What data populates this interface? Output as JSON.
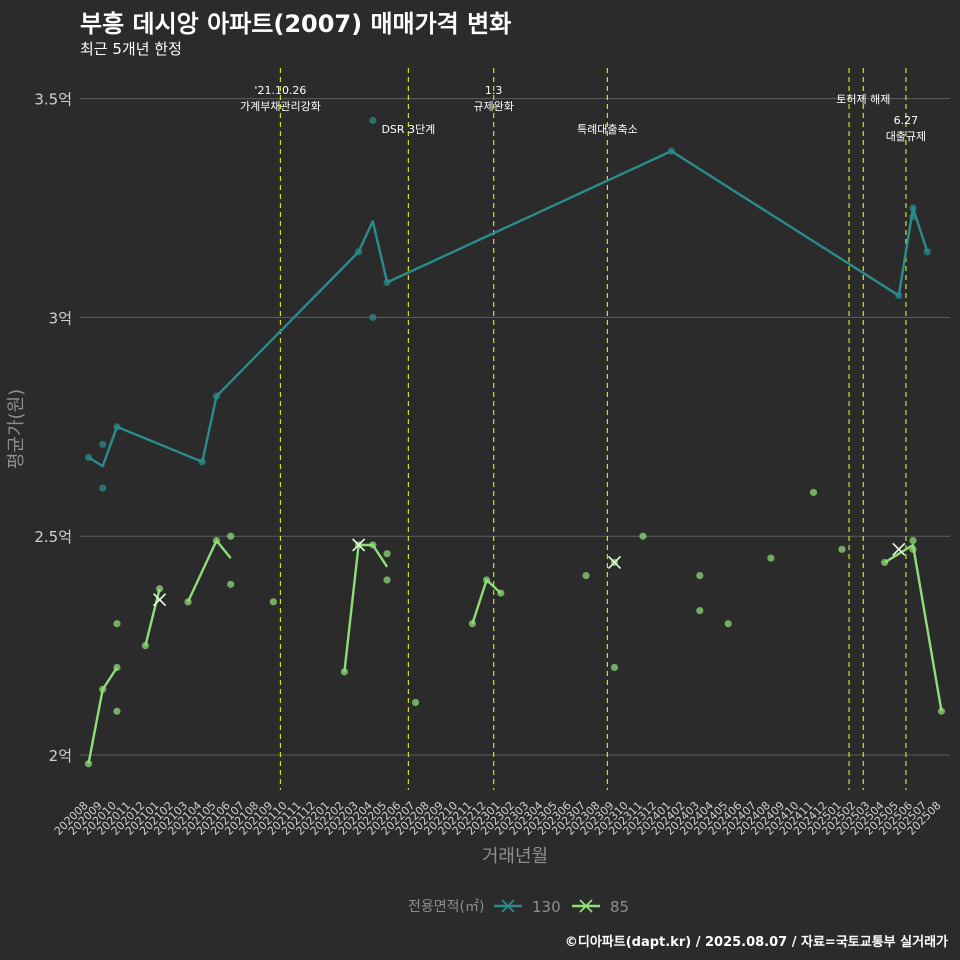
{
  "header": {
    "title": "부흥 데시앙 아파트(2007) 매매가격 변화",
    "subtitle": "최근 5개년 한정"
  },
  "caption": "©디아파트(dapt.kr) / 2025.08.07 / 자료=국토교통부 실거래가",
  "colors": {
    "background": "#2b2b2b",
    "grid": "#5e5e5e",
    "event_line": "#d4e01a",
    "series_130": "#2a8c8c",
    "series_85": "#8fde78",
    "axis_text": "#8e8e8e",
    "tick_text": "#d0d0d0"
  },
  "chart_data": {
    "type": "line",
    "title": "부흥 데시앙 아파트(2007) 매매가격 변화",
    "subtitle": "최근 5개년 한정",
    "xlabel": "거래년월",
    "ylabel": "평균가(원)",
    "ylim": [
      1.92,
      3.57
    ],
    "y_ticks": [
      {
        "value": 2.0,
        "label": "2억"
      },
      {
        "value": 2.5,
        "label": "2.5억"
      },
      {
        "value": 3.0,
        "label": "3억"
      },
      {
        "value": 3.5,
        "label": "3.5억"
      }
    ],
    "x_categories": [
      "202008",
      "202009",
      "202010",
      "202011",
      "202012",
      "202101",
      "202102",
      "202103",
      "202104",
      "202105",
      "202106",
      "202107",
      "202108",
      "202109",
      "202110",
      "202111",
      "202112",
      "202201",
      "202202",
      "202203",
      "202204",
      "202205",
      "202206",
      "202207",
      "202208",
      "202209",
      "202210",
      "202211",
      "202212",
      "202301",
      "202302",
      "202303",
      "202304",
      "202305",
      "202306",
      "202307",
      "202308",
      "202309",
      "202310",
      "202311",
      "202312",
      "202401",
      "202402",
      "202403",
      "202404",
      "202405",
      "202406",
      "202407",
      "202408",
      "202409",
      "202410",
      "202411",
      "202412",
      "202501",
      "202502",
      "202503",
      "202504",
      "202505",
      "202506",
      "202507",
      "202508"
    ],
    "grid": true,
    "legend": {
      "title": "전용면적(㎡)",
      "position": "bottom",
      "items": [
        {
          "name": "130",
          "color": "#2a8c8c"
        },
        {
          "name": "85",
          "color": "#8fde78"
        }
      ]
    },
    "events": [
      {
        "x": 14.5,
        "lines": [
          "'21.10.26",
          "가계부채관리강화"
        ],
        "level": 1
      },
      {
        "x": 23.5,
        "lines": [
          "DSR 3단계"
        ],
        "level": 2
      },
      {
        "x": 29.5,
        "lines": [
          "1.3",
          "규제완화"
        ],
        "level": 1
      },
      {
        "x": 37.5,
        "lines": [
          "특례대출축소"
        ],
        "level": 2
      },
      {
        "x": 54.5,
        "lines": [],
        "level": 0
      },
      {
        "x": 55.5,
        "lines": [
          "토허제 해제"
        ],
        "level": 0.5
      },
      {
        "x": 58.5,
        "lines": [
          "6.27",
          "대출규제"
        ],
        "level": 2.5
      }
    ],
    "series": [
      {
        "name": "130",
        "color": "#2a8c8c",
        "line": [
          [
            1,
            2.68
          ],
          [
            2,
            2.66
          ],
          [
            3,
            2.75
          ],
          [
            9,
            2.67
          ],
          [
            10,
            2.82
          ],
          [
            20,
            3.15
          ],
          [
            21,
            3.22
          ],
          [
            22,
            3.08
          ],
          [
            42,
            3.38
          ],
          [
            58,
            3.05
          ],
          [
            59,
            3.25
          ],
          [
            60,
            3.15
          ]
        ],
        "points": [
          [
            1,
            2.68
          ],
          [
            2,
            2.61
          ],
          [
            2,
            2.71
          ],
          [
            3,
            2.75
          ],
          [
            9,
            2.67
          ],
          [
            10,
            2.82
          ],
          [
            20,
            3.15
          ],
          [
            21,
            3.45
          ],
          [
            21,
            3.0
          ],
          [
            22,
            3.08
          ],
          [
            42,
            3.38
          ],
          [
            58,
            3.05
          ],
          [
            59,
            3.25
          ],
          [
            59,
            3.23
          ],
          [
            60,
            3.15
          ]
        ],
        "crosses": []
      },
      {
        "name": "85",
        "color": "#8fde78",
        "line_segments": [
          [
            [
              1,
              1.98
            ],
            [
              2,
              2.15
            ],
            [
              3,
              2.2
            ]
          ],
          [
            [
              5,
              2.25
            ],
            [
              6,
              2.38
            ]
          ],
          [
            [
              8,
              2.35
            ],
            [
              10,
              2.49
            ],
            [
              11,
              2.45
            ]
          ],
          [
            [
              19,
              2.19
            ],
            [
              20,
              2.48
            ],
            [
              21,
              2.48
            ],
            [
              22,
              2.43
            ]
          ],
          [
            [
              28,
              2.3
            ],
            [
              29,
              2.4
            ],
            [
              30,
              2.37
            ]
          ],
          [
            [
              57,
              2.44
            ],
            [
              59,
              2.48
            ],
            [
              61,
              2.1
            ]
          ]
        ],
        "points": [
          [
            1,
            1.98
          ],
          [
            2,
            2.15
          ],
          [
            3,
            2.2
          ],
          [
            3,
            2.1
          ],
          [
            3,
            2.3
          ],
          [
            5,
            2.25
          ],
          [
            6,
            2.38
          ],
          [
            8,
            2.35
          ],
          [
            10,
            2.49
          ],
          [
            11,
            2.5
          ],
          [
            11,
            2.39
          ],
          [
            14,
            2.35
          ],
          [
            19,
            2.19
          ],
          [
            20,
            2.48
          ],
          [
            21,
            2.48
          ],
          [
            22,
            2.46
          ],
          [
            22,
            2.4
          ],
          [
            24,
            2.12
          ],
          [
            28,
            2.3
          ],
          [
            29,
            2.4
          ],
          [
            30,
            2.37
          ],
          [
            36,
            2.41
          ],
          [
            38,
            2.2
          ],
          [
            38,
            2.44
          ],
          [
            40,
            2.5
          ],
          [
            44,
            2.41
          ],
          [
            44,
            2.33
          ],
          [
            46,
            2.3
          ],
          [
            49,
            2.45
          ],
          [
            52,
            2.6
          ],
          [
            54,
            2.47
          ],
          [
            57,
            2.44
          ],
          [
            59,
            2.47
          ],
          [
            59,
            2.49
          ],
          [
            61,
            2.1
          ]
        ],
        "crosses": [
          [
            6,
            2.355
          ],
          [
            20,
            2.48
          ],
          [
            38,
            2.44
          ],
          [
            58,
            2.47
          ]
        ]
      }
    ]
  }
}
